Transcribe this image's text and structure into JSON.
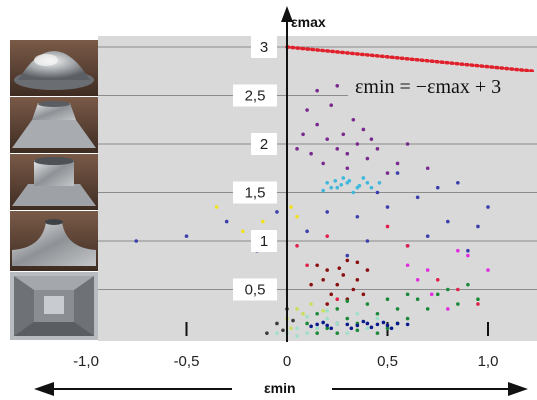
{
  "chart_data": {
    "type": "scatter",
    "title": "",
    "xlabel": "εmin",
    "ylabel": "εmax",
    "xlim": [
      -1.27,
      1.23
    ],
    "ylim": [
      -0.05,
      3.1
    ],
    "grid": "horizontal",
    "x_tick_labels": [
      {
        "value": -1.0,
        "label": "-1,0"
      },
      {
        "value": -0.5,
        "label": "-0,5"
      },
      {
        "value": 0.0,
        "label": "0"
      },
      {
        "value": 0.5,
        "label": "0,5"
      },
      {
        "value": 1.0,
        "label": "1,0"
      }
    ],
    "y_tick_labels": [
      {
        "value": 0.5,
        "label": "0,5"
      },
      {
        "value": 1.0,
        "label": "1"
      },
      {
        "value": 1.5,
        "label": "1,5"
      },
      {
        "value": 2.0,
        "label": "2"
      },
      {
        "value": 2.5,
        "label": "2,5"
      },
      {
        "value": 3.0,
        "label": "3"
      }
    ],
    "limit_line": {
      "equation_label": "εmin = −εmax + 3",
      "slope": -1,
      "intercept": 3,
      "color": "#e0202a",
      "style": "dotted"
    },
    "series": [
      {
        "color": "#7a2a8f",
        "points": [
          [
            0.1,
            2.35
          ],
          [
            0.15,
            2.2
          ],
          [
            0.2,
            2.05
          ],
          [
            0.25,
            1.95
          ],
          [
            0.3,
            1.9
          ],
          [
            0.35,
            2.0
          ],
          [
            0.4,
            1.85
          ],
          [
            0.18,
            1.8
          ],
          [
            0.28,
            2.1
          ],
          [
            0.33,
            2.25
          ],
          [
            0.45,
            1.95
          ],
          [
            0.12,
            1.9
          ],
          [
            0.22,
            2.4
          ],
          [
            0.38,
            2.15
          ],
          [
            0.05,
            1.95
          ],
          [
            0.5,
            1.7
          ],
          [
            0.6,
            2.0
          ],
          [
            0.7,
            1.75
          ],
          [
            0.15,
            2.55
          ],
          [
            0.25,
            2.6
          ],
          [
            0.3,
            1.75
          ],
          [
            0.42,
            2.05
          ],
          [
            0.08,
            2.1
          ],
          [
            0.55,
            1.8
          ]
        ]
      },
      {
        "color": "#3fb8dc",
        "points": [
          [
            0.2,
            1.6
          ],
          [
            0.25,
            1.55
          ],
          [
            0.3,
            1.6
          ],
          [
            0.35,
            1.55
          ],
          [
            0.4,
            1.6
          ],
          [
            0.28,
            1.65
          ],
          [
            0.33,
            1.5
          ],
          [
            0.22,
            1.55
          ],
          [
            0.38,
            1.65
          ],
          [
            0.27,
            1.58
          ],
          [
            0.31,
            1.62
          ],
          [
            0.36,
            1.57
          ],
          [
            0.24,
            1.62
          ],
          [
            0.42,
            1.55
          ],
          [
            0.18,
            1.52
          ],
          [
            0.46,
            1.6
          ]
        ]
      },
      {
        "color": "#3b3fae",
        "points": [
          [
            -0.75,
            1.0
          ],
          [
            -0.5,
            1.05
          ],
          [
            -0.3,
            1.2
          ],
          [
            -0.15,
            0.9
          ],
          [
            0.1,
            1.1
          ],
          [
            0.2,
            1.3
          ],
          [
            0.35,
            1.25
          ],
          [
            0.5,
            1.35
          ],
          [
            0.65,
            1.45
          ],
          [
            0.8,
            1.2
          ],
          [
            0.95,
            1.15
          ],
          [
            0.6,
            0.95
          ],
          [
            0.75,
            1.55
          ],
          [
            0.45,
            1.5
          ],
          [
            0.9,
            0.9
          ],
          [
            0.3,
            0.85
          ],
          [
            0.55,
            1.7
          ],
          [
            0.7,
            1.05
          ],
          [
            1.0,
            1.35
          ],
          [
            0.4,
            1.0
          ],
          [
            -0.05,
            1.3
          ],
          [
            0.85,
            1.6
          ]
        ]
      },
      {
        "color": "#f0e21a",
        "points": [
          [
            -0.35,
            1.35
          ],
          [
            -0.22,
            1.1
          ],
          [
            -0.06,
            1.45
          ],
          [
            0.02,
            1.35
          ],
          [
            -0.12,
            1.2
          ],
          [
            0.05,
            1.25
          ]
        ]
      },
      {
        "color": "#e0204a",
        "points": [
          [
            0.05,
            0.95
          ],
          [
            0.1,
            0.75
          ],
          [
            0.25,
            0.4
          ],
          [
            0.5,
            1.15
          ],
          [
            0.6,
            0.95
          ],
          [
            0.75,
            0.6
          ],
          [
            0.85,
            0.5
          ],
          [
            0.95,
            0.35
          ],
          [
            0.2,
            1.05
          ]
        ]
      },
      {
        "color": "#e22ee0",
        "points": [
          [
            0.6,
            0.75
          ],
          [
            0.7,
            0.7
          ],
          [
            0.72,
            0.45
          ],
          [
            0.85,
            0.9
          ],
          [
            1.0,
            0.7
          ],
          [
            0.8,
            0.3
          ],
          [
            0.9,
            0.85
          ],
          [
            0.65,
            0.6
          ]
        ]
      },
      {
        "color": "#8a1010",
        "points": [
          [
            0.15,
            0.75
          ],
          [
            0.2,
            0.7
          ],
          [
            0.25,
            0.55
          ],
          [
            0.3,
            0.8
          ],
          [
            0.35,
            0.6
          ],
          [
            0.22,
            0.45
          ],
          [
            0.28,
            0.65
          ],
          [
            0.33,
            0.5
          ],
          [
            0.18,
            0.6
          ],
          [
            0.4,
            0.7
          ],
          [
            0.12,
            0.55
          ],
          [
            0.38,
            0.45
          ],
          [
            0.26,
            0.72
          ],
          [
            0.3,
            0.4
          ],
          [
            0.2,
            0.35
          ],
          [
            0.35,
            0.78
          ]
        ]
      },
      {
        "color": "#1a8a3a",
        "points": [
          [
            0.1,
            0.15
          ],
          [
            0.15,
            0.25
          ],
          [
            0.2,
            0.1
          ],
          [
            0.25,
            0.3
          ],
          [
            0.3,
            0.2
          ],
          [
            0.35,
            0.15
          ],
          [
            0.4,
            0.35
          ],
          [
            0.45,
            0.25
          ],
          [
            0.5,
            0.1
          ],
          [
            0.55,
            0.3
          ],
          [
            0.6,
            0.2
          ],
          [
            0.65,
            0.4
          ],
          [
            0.7,
            0.3
          ],
          [
            0.75,
            0.45
          ],
          [
            0.8,
            0.5
          ],
          [
            0.85,
            0.35
          ],
          [
            0.9,
            0.55
          ],
          [
            0.95,
            0.4
          ],
          [
            0.25,
            0.05
          ],
          [
            0.35,
            0.08
          ],
          [
            0.45,
            0.05
          ],
          [
            0.5,
            0.4
          ],
          [
            0.55,
            0.15
          ],
          [
            0.6,
            0.45
          ],
          [
            0.3,
            0.38
          ],
          [
            0.15,
            0.05
          ]
        ]
      },
      {
        "color": "#0a1a8a",
        "points": [
          [
            0.12,
            0.12
          ],
          [
            0.15,
            0.14
          ],
          [
            0.2,
            0.13
          ],
          [
            0.25,
            0.15
          ],
          [
            0.3,
            0.14
          ],
          [
            0.35,
            0.13
          ],
          [
            0.4,
            0.15
          ],
          [
            0.45,
            0.14
          ],
          [
            0.5,
            0.13
          ],
          [
            0.55,
            0.15
          ],
          [
            0.6,
            0.14
          ],
          [
            0.22,
            0.1
          ],
          [
            0.32,
            0.1
          ],
          [
            0.42,
            0.11
          ],
          [
            0.52,
            0.1
          ],
          [
            0.18,
            0.16
          ],
          [
            0.38,
            0.17
          ],
          [
            0.48,
            0.16
          ]
        ]
      },
      {
        "color": "#9fe0c8",
        "points": [
          [
            0.0,
            0.05
          ],
          [
            0.05,
            0.1
          ],
          [
            0.1,
            0.05
          ],
          [
            0.15,
            0.1
          ],
          [
            0.2,
            0.2
          ],
          [
            0.25,
            0.15
          ],
          [
            0.3,
            0.05
          ],
          [
            0.35,
            0.25
          ],
          [
            0.4,
            0.1
          ],
          [
            0.05,
            0.02
          ],
          [
            -0.05,
            0.05
          ],
          [
            0.45,
            0.2
          ],
          [
            0.1,
            0.22
          ],
          [
            0.2,
            0.28
          ]
        ]
      },
      {
        "color": "#c8e05a",
        "points": [
          [
            0.0,
            0.2
          ],
          [
            0.05,
            0.3
          ],
          [
            0.12,
            0.35
          ],
          [
            0.18,
            0.28
          ],
          [
            0.08,
            0.25
          ],
          [
            0.02,
            0.1
          ]
        ]
      },
      {
        "color": "#3a3a3a",
        "points": [
          [
            -0.1,
            0.05
          ],
          [
            -0.05,
            0.15
          ],
          [
            0.0,
            0.3
          ],
          [
            0.03,
            0.18
          ],
          [
            -0.02,
            0.08
          ]
        ]
      }
    ]
  },
  "axis_labels": {
    "x_title": "εmin",
    "y_title": "εmax"
  },
  "photos": [
    {
      "name": "dome-sample"
    },
    {
      "name": "cone-sample"
    },
    {
      "name": "tube-sample"
    },
    {
      "name": "collar-sample"
    },
    {
      "name": "square-cup-sample"
    }
  ],
  "colors": {
    "plot_bg": "#d9d9d9",
    "grid": "#8c8c8c",
    "axis": "#111111",
    "label_box": "#ffffff"
  }
}
